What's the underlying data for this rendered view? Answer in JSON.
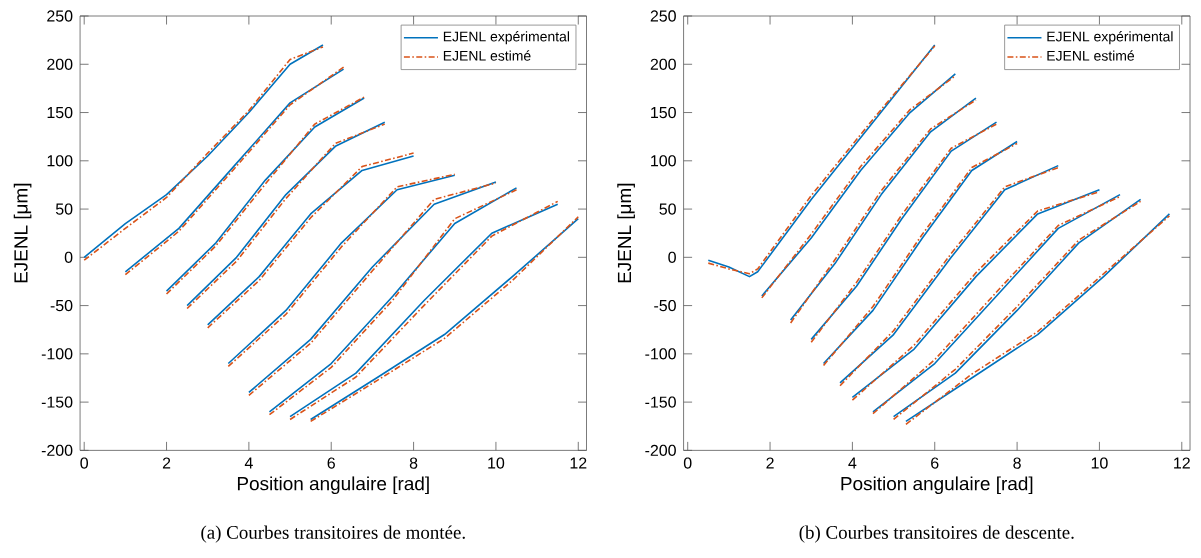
{
  "chart_data": [
    {
      "type": "line",
      "xlabel": "Position angulaire [rad]",
      "ylabel": "EJENL [μm]",
      "xlim": [
        -0.1,
        12.2
      ],
      "ylim": [
        -200,
        250
      ],
      "xticks": [
        0,
        2,
        4,
        6,
        8,
        10,
        12
      ],
      "yticks": [
        -200,
        -150,
        -100,
        -50,
        0,
        50,
        100,
        150,
        200,
        250
      ],
      "grid": false,
      "legend": "top right",
      "annotations": [
        "(a) Courbes transitoires de montée."
      ],
      "series": [
        {
          "name": "EJENL expérimental",
          "color": "#0072bd",
          "line_style": "solid",
          "x": [
            0,
            1,
            2,
            3,
            4,
            5,
            5.8
          ],
          "values": [
            0,
            35,
            65,
            105,
            150,
            200,
            220
          ]
        },
        {
          "name": "EJENL estimé",
          "color": "#d95319",
          "line_style": "dashed",
          "x": [
            0,
            1,
            2,
            3,
            4,
            5,
            5.8
          ],
          "values": [
            -3,
            30,
            62,
            108,
            152,
            205,
            218
          ]
        },
        {
          "color": "#0072bd",
          "line_style": "solid",
          "x": [
            1,
            2.3,
            3.65,
            5,
            6.3
          ],
          "values": [
            -15,
            30,
            95,
            160,
            195
          ]
        },
        {
          "color": "#d95319",
          "line_style": "dashed",
          "x": [
            1,
            2.3,
            3.65,
            5,
            6.3
          ],
          "values": [
            -18,
            27,
            92,
            158,
            197
          ]
        },
        {
          "color": "#0072bd",
          "line_style": "solid",
          "x": [
            2,
            3.2,
            4.4,
            5.6,
            6.8
          ],
          "values": [
            -35,
            15,
            80,
            135,
            165
          ]
        },
        {
          "color": "#d95319",
          "line_style": "dashed",
          "x": [
            2,
            3.2,
            4.4,
            5.6,
            6.8
          ],
          "values": [
            -38,
            12,
            76,
            138,
            166
          ]
        },
        {
          "color": "#0072bd",
          "line_style": "solid",
          "x": [
            2.5,
            3.7,
            4.9,
            6.1,
            7.3
          ],
          "values": [
            -50,
            0,
            65,
            115,
            140
          ]
        },
        {
          "color": "#d95319",
          "line_style": "dashed",
          "x": [
            2.5,
            3.7,
            4.9,
            6.1,
            7.3
          ],
          "values": [
            -53,
            -4,
            61,
            118,
            138
          ]
        },
        {
          "color": "#0072bd",
          "line_style": "solid",
          "x": [
            3,
            4.25,
            5.5,
            6.75,
            8
          ],
          "values": [
            -70,
            -20,
            45,
            90,
            105
          ]
        },
        {
          "color": "#d95319",
          "line_style": "dashed",
          "x": [
            3,
            4.25,
            5.5,
            6.75,
            8
          ],
          "values": [
            -73,
            -24,
            41,
            94,
            108
          ]
        },
        {
          "color": "#0072bd",
          "line_style": "solid",
          "x": [
            3.5,
            4.9,
            6.25,
            7.6,
            9
          ],
          "values": [
            -110,
            -55,
            15,
            70,
            85
          ]
        },
        {
          "color": "#d95319",
          "line_style": "dashed",
          "x": [
            3.5,
            4.9,
            6.25,
            7.6,
            9
          ],
          "values": [
            -113,
            -59,
            11,
            73,
            86
          ]
        },
        {
          "color": "#0072bd",
          "line_style": "solid",
          "x": [
            4,
            5.5,
            7,
            8.5,
            10
          ],
          "values": [
            -140,
            -85,
            -10,
            55,
            78
          ]
        },
        {
          "color": "#d95319",
          "line_style": "dashed",
          "x": [
            4,
            5.5,
            7,
            8.5,
            10
          ],
          "values": [
            -143,
            -89,
            -14,
            60,
            77
          ]
        },
        {
          "color": "#0072bd",
          "line_style": "solid",
          "x": [
            4.5,
            6,
            7.5,
            9,
            10.5
          ],
          "values": [
            -160,
            -110,
            -40,
            35,
            72
          ]
        },
        {
          "color": "#d95319",
          "line_style": "dashed",
          "x": [
            4.5,
            6,
            7.5,
            9,
            10.5
          ],
          "values": [
            -163,
            -114,
            -44,
            40,
            70
          ]
        },
        {
          "color": "#0072bd",
          "line_style": "solid",
          "x": [
            5,
            6.6,
            8.25,
            9.9,
            11.5
          ],
          "values": [
            -165,
            -120,
            -45,
            25,
            55
          ]
        },
        {
          "color": "#d95319",
          "line_style": "dashed",
          "x": [
            5,
            6.6,
            8.25,
            9.9,
            11.5
          ],
          "values": [
            -168,
            -124,
            -50,
            22,
            58
          ]
        },
        {
          "color": "#0072bd",
          "line_style": "solid",
          "x": [
            5.5,
            7.1,
            8.75,
            10.4,
            12
          ],
          "values": [
            -168,
            -125,
            -80,
            -20,
            40
          ]
        },
        {
          "color": "#d95319",
          "line_style": "dashed",
          "x": [
            5.5,
            7.1,
            8.75,
            10.4,
            12
          ],
          "values": [
            -170,
            -128,
            -84,
            -24,
            42
          ]
        }
      ]
    },
    {
      "type": "line",
      "xlabel": "Position angulaire [rad]",
      "ylabel": "EJENL [μm]",
      "xlim": [
        -0.1,
        12.2
      ],
      "ylim": [
        -200,
        250
      ],
      "xticks": [
        0,
        2,
        4,
        6,
        8,
        10,
        12
      ],
      "yticks": [
        -200,
        -150,
        -100,
        -50,
        0,
        50,
        100,
        150,
        200,
        250
      ],
      "grid": false,
      "legend": "top right",
      "annotations": [
        "(b) Courbes transitoires de descente."
      ],
      "series": [
        {
          "name": "EJENL expérimental",
          "color": "#0072bd",
          "line_style": "solid",
          "x": [
            0.5,
            1,
            1.5,
            1.7,
            3,
            4.5,
            6
          ],
          "values": [
            -3,
            -10,
            -20,
            -15,
            60,
            140,
            220
          ]
        },
        {
          "name": "EJENL estimé",
          "color": "#d95319",
          "line_style": "dashed",
          "x": [
            0.5,
            1,
            1.5,
            1.7,
            3,
            4.5,
            6
          ],
          "values": [
            -6,
            -12,
            -17,
            -12,
            64,
            143,
            219
          ]
        },
        {
          "color": "#0072bd",
          "line_style": "solid",
          "x": [
            1.8,
            3,
            4.2,
            5.4,
            6.5
          ],
          "values": [
            -40,
            20,
            90,
            150,
            190
          ]
        },
        {
          "color": "#d95319",
          "line_style": "dashed",
          "x": [
            1.8,
            3,
            4.2,
            5.4,
            6.5
          ],
          "values": [
            -42,
            24,
            94,
            153,
            188
          ]
        },
        {
          "color": "#0072bd",
          "line_style": "solid",
          "x": [
            2.5,
            3.6,
            4.7,
            5.9,
            7
          ],
          "values": [
            -65,
            -5,
            65,
            130,
            165
          ]
        },
        {
          "color": "#d95319",
          "line_style": "dashed",
          "x": [
            2.5,
            3.6,
            4.7,
            5.9,
            7
          ],
          "values": [
            -68,
            -1,
            69,
            133,
            163
          ]
        },
        {
          "color": "#0072bd",
          "line_style": "solid",
          "x": [
            3,
            4.1,
            5.2,
            6.4,
            7.5
          ],
          "values": [
            -85,
            -30,
            40,
            110,
            140
          ]
        },
        {
          "color": "#d95319",
          "line_style": "dashed",
          "x": [
            3,
            4.1,
            5.2,
            6.4,
            7.5
          ],
          "values": [
            -88,
            -26,
            44,
            113,
            138
          ]
        },
        {
          "color": "#0072bd",
          "line_style": "solid",
          "x": [
            3.3,
            4.5,
            5.7,
            6.9,
            8
          ],
          "values": [
            -110,
            -55,
            20,
            90,
            120
          ]
        },
        {
          "color": "#d95319",
          "line_style": "dashed",
          "x": [
            3.3,
            4.5,
            5.7,
            6.9,
            8
          ],
          "values": [
            -112,
            -51,
            24,
            93,
            118
          ]
        },
        {
          "color": "#0072bd",
          "line_style": "solid",
          "x": [
            3.7,
            5,
            6.4,
            7.7,
            9
          ],
          "values": [
            -130,
            -80,
            0,
            70,
            95
          ]
        },
        {
          "color": "#d95319",
          "line_style": "dashed",
          "x": [
            3.7,
            5,
            6.4,
            7.7,
            9
          ],
          "values": [
            -133,
            -76,
            4,
            73,
            93
          ]
        },
        {
          "color": "#0072bd",
          "line_style": "solid",
          "x": [
            4,
            5.5,
            7,
            8.5,
            10
          ],
          "values": [
            -145,
            -95,
            -20,
            45,
            70
          ]
        },
        {
          "color": "#d95319",
          "line_style": "dashed",
          "x": [
            4,
            5.5,
            7,
            8.5,
            10
          ],
          "values": [
            -148,
            -91,
            -16,
            48,
            68
          ]
        },
        {
          "color": "#0072bd",
          "line_style": "solid",
          "x": [
            4.5,
            6,
            7.5,
            9,
            10.5
          ],
          "values": [
            -160,
            -110,
            -40,
            30,
            65
          ]
        },
        {
          "color": "#d95319",
          "line_style": "dashed",
          "x": [
            4.5,
            6,
            7.5,
            9,
            10.5
          ],
          "values": [
            -162,
            -106,
            -36,
            33,
            63
          ]
        },
        {
          "color": "#0072bd",
          "line_style": "solid",
          "x": [
            5,
            6.5,
            8,
            9.5,
            11
          ],
          "values": [
            -165,
            -120,
            -55,
            15,
            60
          ]
        },
        {
          "color": "#d95319",
          "line_style": "dashed",
          "x": [
            5,
            6.5,
            8,
            9.5,
            11
          ],
          "values": [
            -168,
            -116,
            -51,
            18,
            58
          ]
        },
        {
          "color": "#0072bd",
          "line_style": "solid",
          "x": [
            5.3,
            6.9,
            8.5,
            10.1,
            11.7
          ],
          "values": [
            -170,
            -125,
            -80,
            -20,
            45
          ]
        },
        {
          "color": "#d95319",
          "line_style": "dashed",
          "x": [
            5.3,
            6.9,
            8.5,
            10.1,
            11.7
          ],
          "values": [
            -173,
            -121,
            -77,
            -17,
            43
          ]
        }
      ]
    }
  ]
}
